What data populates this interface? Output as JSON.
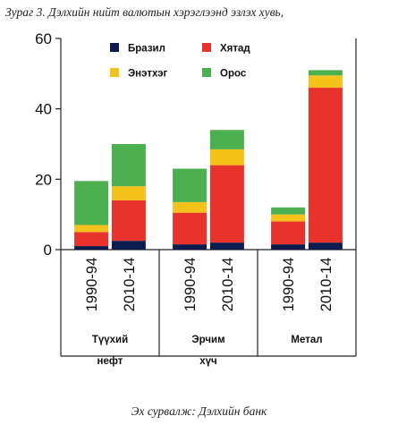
{
  "figure": {
    "title": "Зураг 3. Дэлхийн нийт валютын хэрэглээнд эзлэх хувь,",
    "source": "Эх сурвалж: Дэлхийн банк"
  },
  "chart_data": {
    "type": "bar",
    "stacked": true,
    "categories": [
      "1990-94",
      "2010-14",
      "1990-94",
      "2010-14",
      "1990-94",
      "2010-14"
    ],
    "groups": [
      {
        "label_lines": [
          "Түүхий",
          "нефт"
        ]
      },
      {
        "label_lines": [
          "Эрчим",
          "хүч"
        ]
      },
      {
        "label_lines": [
          "Метал"
        ]
      }
    ],
    "series": [
      {
        "name": "Бразил",
        "color": "#0d1b4f",
        "values": [
          1,
          2.5,
          1.5,
          2,
          1.5,
          2
        ]
      },
      {
        "name": "Хятад",
        "color": "#e8322c",
        "values": [
          4,
          11.5,
          9,
          22,
          6.5,
          44
        ]
      },
      {
        "name": "Энэтхэг",
        "color": "#f5c21b",
        "values": [
          2,
          4,
          3,
          4.5,
          2,
          3.5
        ]
      },
      {
        "name": "Орос",
        "color": "#4caf50",
        "values": [
          12.5,
          12,
          9.5,
          5.5,
          2,
          1.5
        ]
      }
    ],
    "ylim": [
      0,
      60
    ],
    "yticks": [
      0,
      20,
      40,
      60
    ],
    "legend_position": "top",
    "grid": false,
    "xlabel": "",
    "ylabel": ""
  }
}
